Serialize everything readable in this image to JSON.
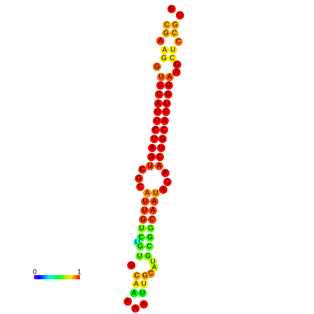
{
  "nodes": [
    {
      "label": "G",
      "value": 1
    },
    {
      "label": "U",
      "value": 1
    },
    {
      "label": "C",
      "value": 0.85
    },
    {
      "label": "G",
      "value": 0.85
    },
    {
      "label": "G",
      "value": 0.85
    },
    {
      "label": "C",
      "value": 0.85
    },
    {
      "label": "A",
      "value": 0.95
    },
    {
      "label": "C",
      "value": 0.9
    },
    {
      "label": "A",
      "value": 0.8
    },
    {
      "label": "U",
      "value": 0.8
    },
    {
      "label": "G",
      "value": 0.8
    },
    {
      "label": "C",
      "value": 0.8
    },
    {
      "label": "G",
      "value": 0.92
    },
    {
      "label": "G",
      "value": 1
    },
    {
      "label": "A",
      "value": 1
    },
    {
      "label": "U",
      "value": 0.92
    },
    {
      "label": "A",
      "value": 0.92
    },
    {
      "label": "G",
      "value": 1
    },
    {
      "label": "G",
      "value": 1
    },
    {
      "label": "C",
      "value": 1
    },
    {
      "label": "G",
      "value": 1
    },
    {
      "label": "A",
      "value": 1
    },
    {
      "label": "U",
      "value": 1
    },
    {
      "label": "U",
      "value": 1
    },
    {
      "label": "G",
      "value": 1
    },
    {
      "label": "U",
      "value": 1
    },
    {
      "label": "A",
      "value": 1
    },
    {
      "label": "C",
      "value": 1
    },
    {
      "label": "C",
      "value": 1
    },
    {
      "label": "U",
      "value": 1
    },
    {
      "label": "G",
      "value": 1
    },
    {
      "label": "A",
      "value": 1
    },
    {
      "label": "U",
      "value": 1
    },
    {
      "label": "G",
      "value": 1
    },
    {
      "label": "C",
      "value": 1
    },
    {
      "label": "U",
      "value": 0.95
    },
    {
      "label": "A",
      "value": 0.95
    },
    {
      "label": "C",
      "value": 0.98
    },
    {
      "label": "G",
      "value": 0.98
    },
    {
      "label": "C",
      "value": 0.98
    },
    {
      "label": "A",
      "value": 1
    },
    {
      "label": "C",
      "value": 1
    },
    {
      "label": "A",
      "value": 1
    },
    {
      "label": "A",
      "value": 0.88
    },
    {
      "label": "U",
      "value": 0.88
    },
    {
      "label": "U",
      "value": 0.95
    },
    {
      "label": "A",
      "value": 0.95
    },
    {
      "label": "U",
      "value": 0.95
    },
    {
      "label": "A",
      "value": 0.95
    },
    {
      "label": "G",
      "value": 0.95
    },
    {
      "label": "C",
      "value": 0.95
    },
    {
      "label": "U",
      "value": 0.65
    },
    {
      "label": "G",
      "value": 0.65
    },
    {
      "label": "C",
      "value": 0.6
    },
    {
      "label": "G",
      "value": 0.6
    },
    {
      "label": "U",
      "value": 0.35
    },
    {
      "label": "G",
      "value": 0.62
    },
    {
      "label": "C",
      "value": 0.62
    },
    {
      "label": "U",
      "value": 0.65
    },
    {
      "label": "G",
      "value": 0.65
    },
    {
      "label": "U",
      "value": 0.72
    },
    {
      "label": "A",
      "value": 0.72
    },
    {
      "label": "C",
      "value": 0.88
    },
    {
      "label": "G",
      "value": 1
    },
    {
      "label": "C",
      "value": 0.85
    },
    {
      "label": "G",
      "value": 0.85
    },
    {
      "label": "A",
      "value": 0.8
    },
    {
      "label": "U",
      "value": 0.8
    },
    {
      "label": "A",
      "value": 0.55
    },
    {
      "label": "U",
      "value": 0.55
    },
    {
      "label": "A",
      "value": 1
    },
    {
      "label": "A",
      "value": 1
    },
    {
      "label": "A",
      "value": 1
    }
  ],
  "legend": {
    "min": 0,
    "max": 1
  }
}
